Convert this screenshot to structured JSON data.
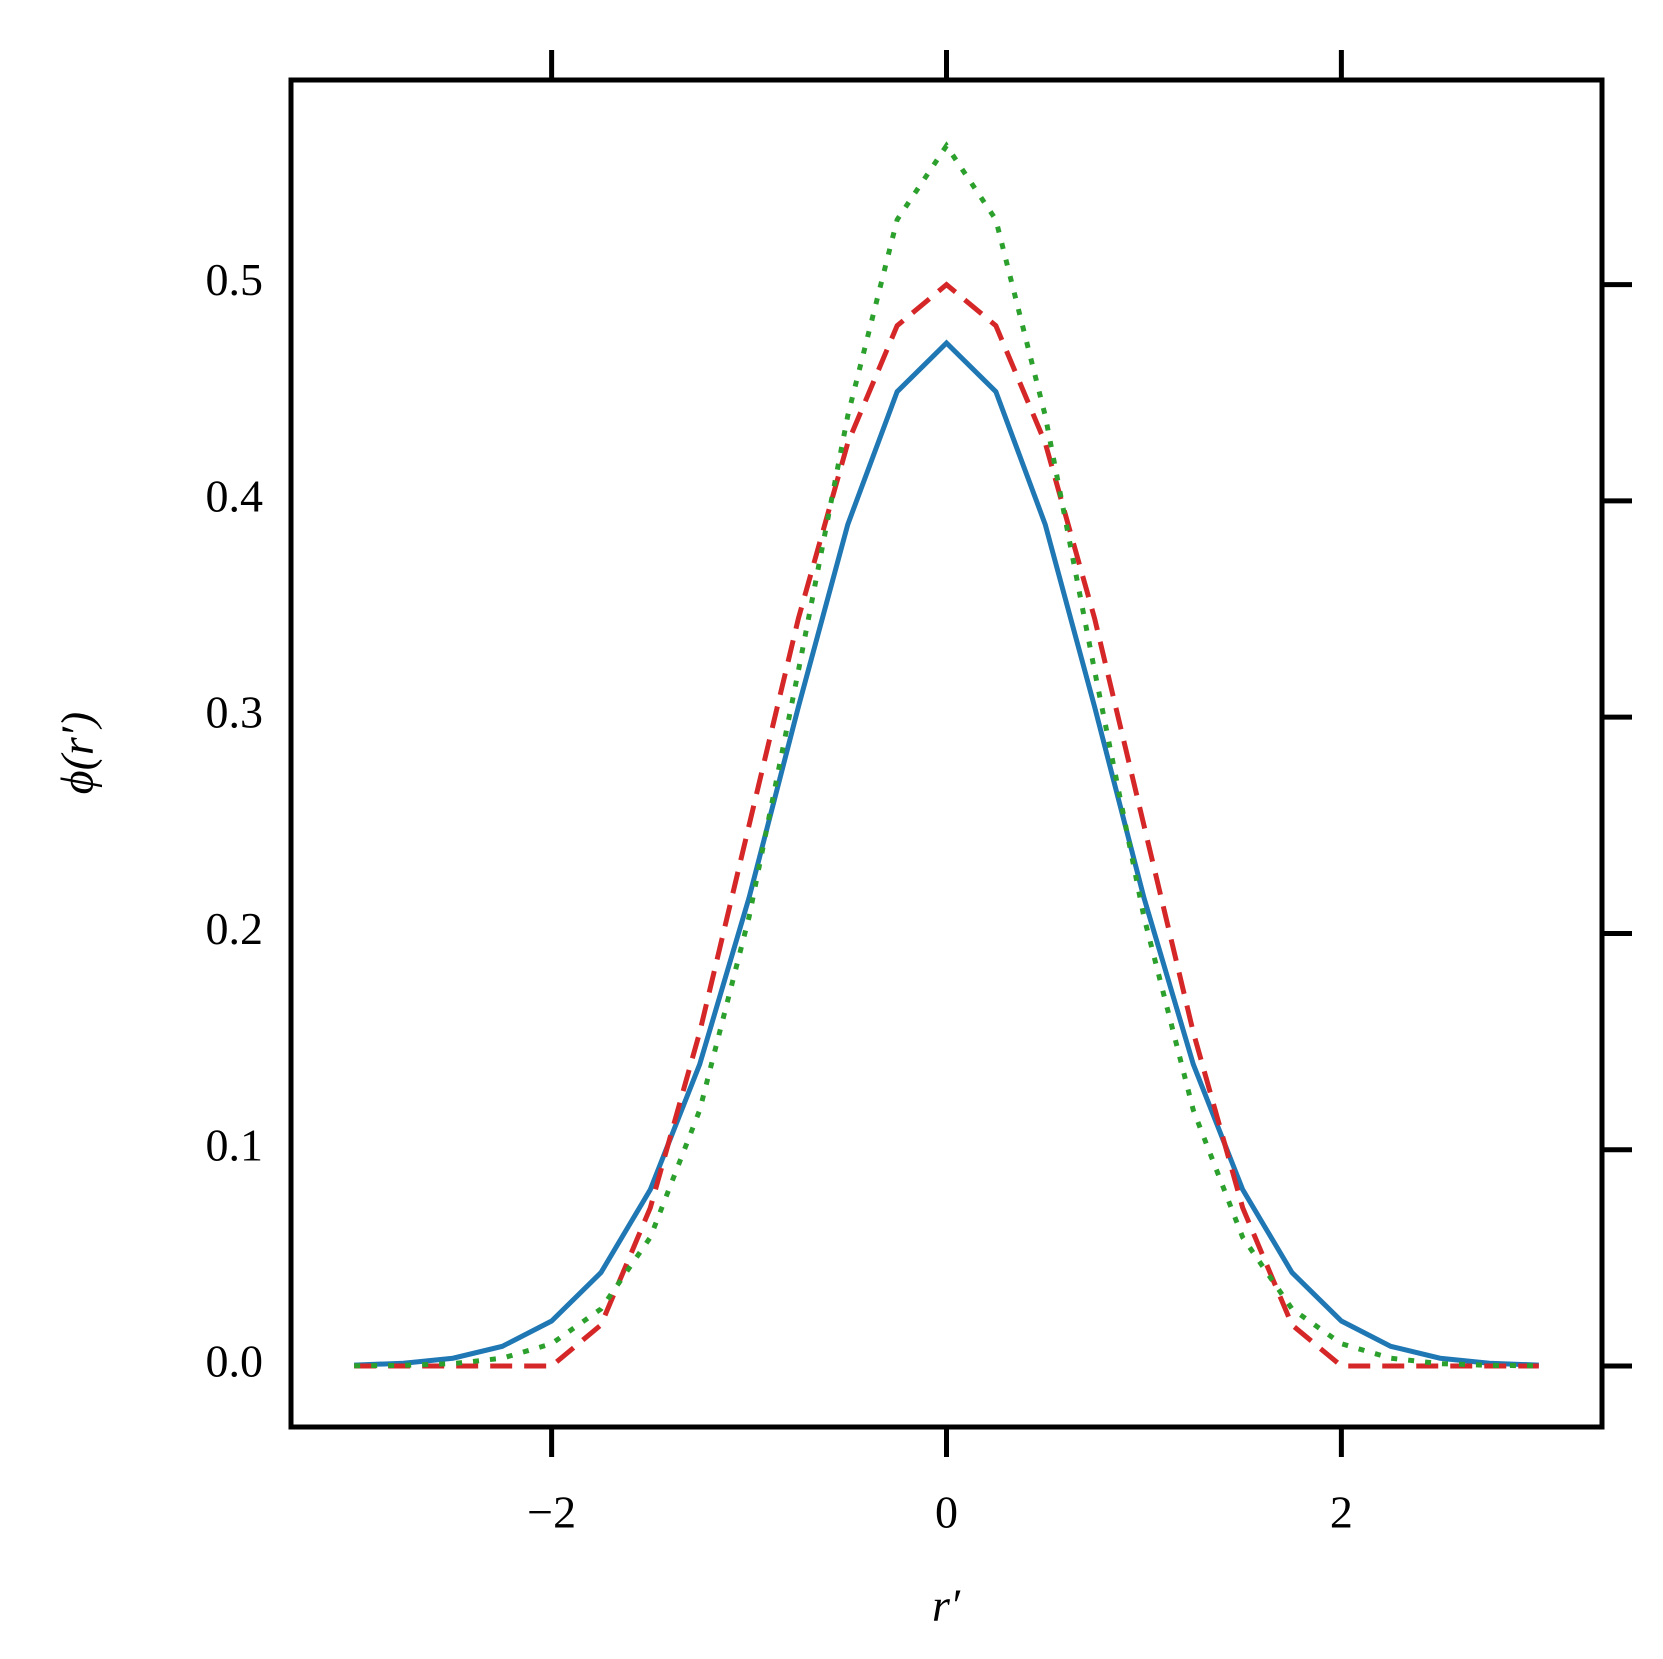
{
  "chart_data": {
    "type": "line",
    "xlabel": "r′",
    "ylabel": "ϕ(r′)",
    "x": [
      -3,
      -2.75,
      -2.5,
      -2.25,
      -2,
      -1.75,
      -1.5,
      -1.25,
      -1,
      -0.75,
      -0.5,
      -0.25,
      0,
      0.25,
      0.5,
      0.75,
      1,
      1.25,
      1.5,
      1.75,
      2,
      2.25,
      2.5,
      2.75,
      3
    ],
    "series": [
      {
        "color": "#1f77b4",
        "style": "solid",
        "values": [
          0.0004,
          0.0013,
          0.0036,
          0.0091,
          0.0208,
          0.0432,
          0.0816,
          0.1395,
          0.2165,
          0.3048,
          0.3891,
          0.4505,
          0.473,
          0.4505,
          0.3891,
          0.3048,
          0.2165,
          0.1395,
          0.0816,
          0.0432,
          0.0208,
          0.0091,
          0.0036,
          0.0013,
          0.0004
        ]
      },
      {
        "color": "#d62728",
        "style": "dashed",
        "values": [
          0,
          0,
          0,
          0,
          0,
          0.019,
          0.0732,
          0.1543,
          0.25,
          0.3457,
          0.4268,
          0.481,
          0.5,
          0.481,
          0.4268,
          0.3457,
          0.25,
          0.1543,
          0.0732,
          0.019,
          0,
          0,
          0,
          0,
          0
        ]
      },
      {
        "color": "#2ca02c",
        "style": "dotted",
        "values": [
          0.0001,
          0.0003,
          0.0011,
          0.0036,
          0.0103,
          0.0264,
          0.0595,
          0.1183,
          0.2076,
          0.3215,
          0.4394,
          0.53,
          0.5642,
          0.53,
          0.4394,
          0.3215,
          0.2076,
          0.1183,
          0.0595,
          0.0264,
          0.0103,
          0.0036,
          0.0011,
          0.0003,
          0.0001
        ]
      }
    ],
    "xlim": [
      -3.32,
      3.32
    ],
    "ylim": [
      -0.0282,
      0.5946
    ],
    "xticks": [
      {
        "value": -2,
        "label": "−2"
      },
      0,
      2
    ],
    "yticks": [
      {
        "value": 0,
        "label": "0.0"
      },
      0.1,
      0.2,
      0.3,
      0.4,
      0.5
    ],
    "grid": false
  }
}
